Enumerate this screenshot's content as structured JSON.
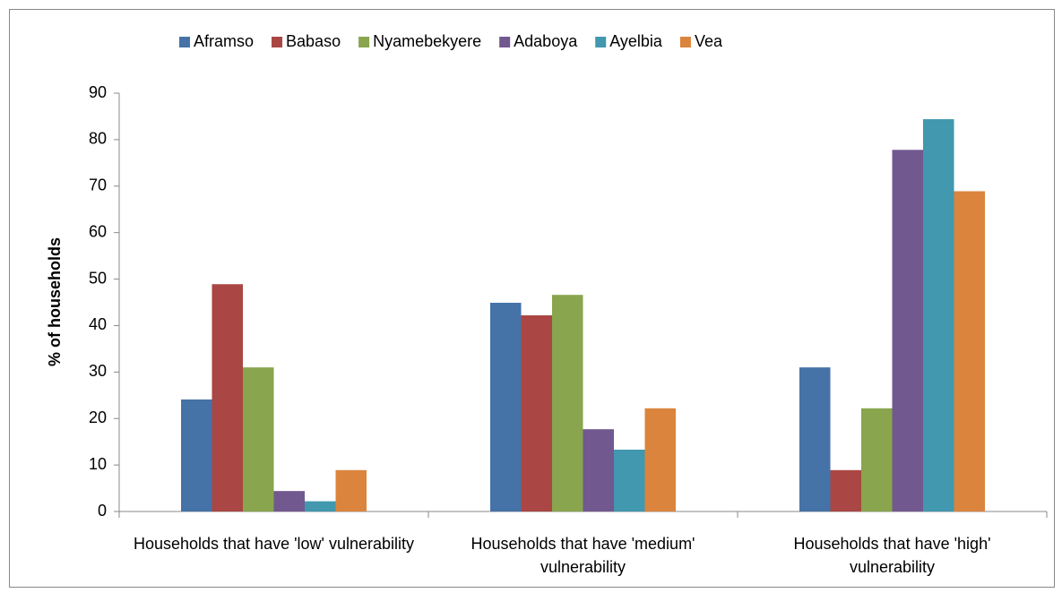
{
  "chart_data": {
    "type": "bar",
    "categories": [
      "Households that have 'low' vulnerability",
      "Households that have 'medium' vulnerability",
      "Households that have 'high' vulnerability"
    ],
    "series": [
      {
        "name": "Aframso",
        "color": "#4572a7",
        "values": [
          24.1,
          44.9,
          31.0
        ]
      },
      {
        "name": "Babaso",
        "color": "#aa4643",
        "values": [
          48.9,
          42.2,
          8.9
        ]
      },
      {
        "name": "Nyamebekyere",
        "color": "#89a54e",
        "values": [
          31.0,
          46.6,
          22.2
        ]
      },
      {
        "name": "Adaboya",
        "color": "#71588f",
        "values": [
          4.4,
          17.7,
          77.8
        ]
      },
      {
        "name": "Ayelbia",
        "color": "#4198af",
        "values": [
          2.2,
          13.3,
          84.4
        ]
      },
      {
        "name": "Vea",
        "color": "#db843d",
        "values": [
          8.9,
          22.2,
          68.9
        ]
      }
    ],
    "ylabel": "% of households",
    "ylim": [
      0,
      90
    ],
    "yticks": [
      0,
      10,
      20,
      30,
      40,
      50,
      60,
      70,
      80,
      90
    ],
    "legend": "top"
  }
}
